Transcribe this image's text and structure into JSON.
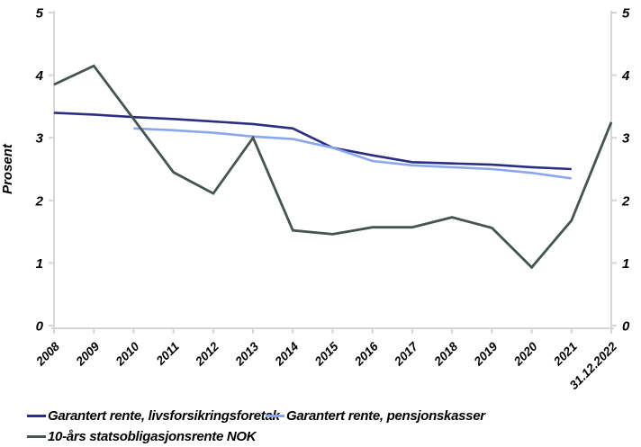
{
  "figure": {
    "background": "#FFFFFF"
  },
  "axes": {
    "axis_color": "#D6D6D6",
    "label_color": "#000000",
    "y_axis_title": "Prosent"
  },
  "chart_data": {
    "type": "line",
    "title": "",
    "xlabel": "",
    "ylabel": "Prosent",
    "ylim": [
      0,
      5
    ],
    "yticks": [
      0,
      1,
      2,
      3,
      4,
      5
    ],
    "grid": false,
    "legend_position": "bottom-left",
    "categories": [
      "2008",
      "2009",
      "2010",
      "2011",
      "2012",
      "2013",
      "2014",
      "2015",
      "2016",
      "2017",
      "2018",
      "2019",
      "2020",
      "2021",
      "31.12.2022"
    ],
    "series": [
      {
        "name": "Garantert rente, livsforsikringsforetak",
        "color": "#2B2E83",
        "stroke_width": 2.6,
        "values": [
          3.4,
          3.37,
          3.33,
          3.3,
          3.26,
          3.22,
          3.15,
          2.84,
          2.72,
          2.61,
          2.59,
          2.57,
          2.53,
          2.5,
          null
        ]
      },
      {
        "name": "Garantert rente, pensjonskasser",
        "color": "#8AA7EC",
        "stroke_width": 2.6,
        "values": [
          null,
          null,
          3.15,
          3.12,
          3.08,
          3.02,
          2.98,
          2.84,
          2.63,
          2.56,
          2.53,
          2.5,
          2.44,
          2.35,
          null
        ]
      },
      {
        "name": "10-års statsobligasjonsrente NOK",
        "color": "#45544F",
        "stroke_width": 2.8,
        "values": [
          3.85,
          4.15,
          3.3,
          2.45,
          2.11,
          3.0,
          1.52,
          1.46,
          1.57,
          1.57,
          1.73,
          1.56,
          0.93,
          1.68,
          3.25
        ]
      }
    ]
  }
}
